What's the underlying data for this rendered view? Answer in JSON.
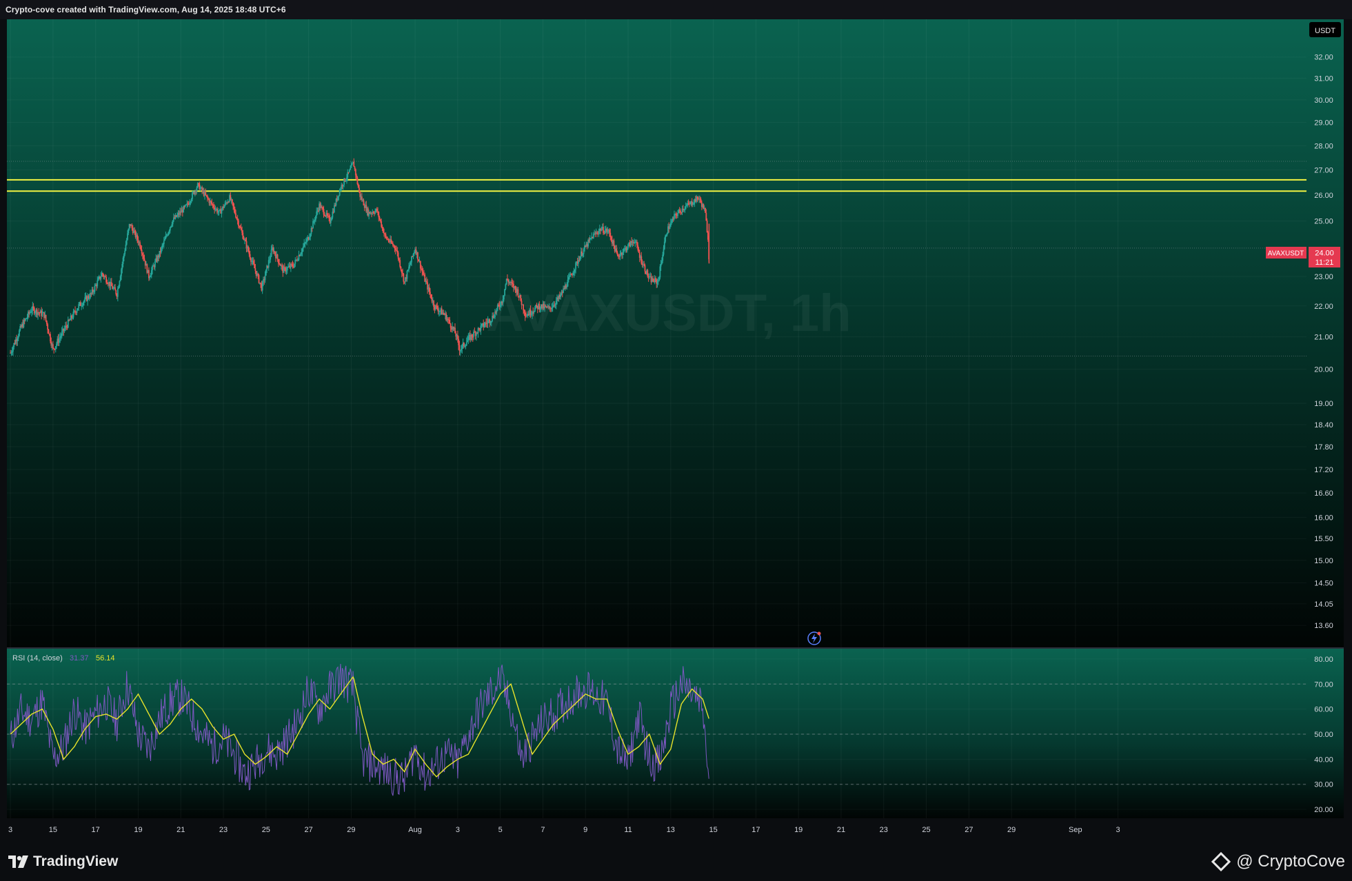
{
  "header": {
    "caption": "Crypto-cove created with TradingView.com, Aug 14, 2025 18:48 UTC+6"
  },
  "footer": {
    "tv_brand": "TradingView",
    "cc_brand": "@ CryptoCove"
  },
  "colors": {
    "up": "#26a69a",
    "down": "#ef5350",
    "hline": "#f4f442",
    "rsi": "#7e57c2",
    "rsi_ma": "#e8e32a",
    "price_tag": "#e53950"
  },
  "chart_data": [
    {
      "type": "candlestick",
      "symbol_watermark": "AVAXUSDT, 1h",
      "currency": "USDT",
      "price_label": {
        "symbol": "AVAXUSDT",
        "price": "24.00",
        "countdown": "11:21"
      },
      "last_price": 24.0,
      "y_scale": "log",
      "ylim": [
        13.2,
        33.8
      ],
      "y_ticks": [
        "32.00",
        "31.00",
        "30.00",
        "29.00",
        "28.00",
        "27.00",
        "26.00",
        "25.00",
        "23.00",
        "22.00",
        "21.00",
        "20.00",
        "19.00",
        "18.40",
        "17.80",
        "17.20",
        "16.60",
        "16.00",
        "15.50",
        "15.00",
        "14.50",
        "14.05",
        "13.60"
      ],
      "x_range_days": [
        -0.1,
        62.5
      ],
      "x_ticks": [
        {
          "label": "3",
          "day": 0
        },
        {
          "label": "15",
          "day": 2
        },
        {
          "label": "17",
          "day": 4
        },
        {
          "label": "19",
          "day": 6
        },
        {
          "label": "21",
          "day": 8
        },
        {
          "label": "23",
          "day": 10
        },
        {
          "label": "25",
          "day": 12
        },
        {
          "label": "27",
          "day": 14
        },
        {
          "label": "29",
          "day": 16
        },
        {
          "label": "Aug",
          "day": 19
        },
        {
          "label": "3",
          "day": 21
        },
        {
          "label": "5",
          "day": 23
        },
        {
          "label": "7",
          "day": 25
        },
        {
          "label": "9",
          "day": 27
        },
        {
          "label": "11",
          "day": 29
        },
        {
          "label": "13",
          "day": 31
        },
        {
          "label": "15",
          "day": 33
        },
        {
          "label": "17",
          "day": 35
        },
        {
          "label": "19",
          "day": 37
        },
        {
          "label": "21",
          "day": 39
        },
        {
          "label": "23",
          "day": 41
        },
        {
          "label": "25",
          "day": 43
        },
        {
          "label": "27",
          "day": 45
        },
        {
          "label": "29",
          "day": 47
        },
        {
          "label": "Sep",
          "day": 50
        },
        {
          "label": "3",
          "day": 52
        }
      ],
      "horizontal_lines": [
        {
          "price": 26.6
        },
        {
          "price": 26.15
        }
      ],
      "dotted_lines": [
        {
          "price": 27.35
        },
        {
          "price": 24.0
        },
        {
          "price": 20.4
        }
      ],
      "price_path": [
        [
          0.0,
          20.5
        ],
        [
          0.5,
          21.3
        ],
        [
          1.0,
          21.9
        ],
        [
          1.6,
          21.7
        ],
        [
          2.0,
          20.6
        ],
        [
          2.5,
          21.2
        ],
        [
          3.2,
          22.0
        ],
        [
          3.8,
          22.4
        ],
        [
          4.3,
          23.1
        ],
        [
          5.0,
          22.4
        ],
        [
          5.6,
          24.9
        ],
        [
          6.1,
          24.1
        ],
        [
          6.5,
          23.0
        ],
        [
          7.0,
          23.8
        ],
        [
          7.6,
          25.0
        ],
        [
          8.3,
          25.6
        ],
        [
          8.8,
          26.4
        ],
        [
          9.3,
          25.8
        ],
        [
          9.8,
          25.3
        ],
        [
          10.3,
          25.9
        ],
        [
          10.8,
          24.7
        ],
        [
          11.3,
          23.6
        ],
        [
          11.8,
          22.6
        ],
        [
          12.3,
          24.0
        ],
        [
          12.8,
          23.2
        ],
        [
          13.3,
          23.4
        ],
        [
          14.0,
          24.4
        ],
        [
          14.5,
          25.6
        ],
        [
          15.0,
          25.0
        ],
        [
          15.5,
          26.3
        ],
        [
          15.9,
          26.9
        ],
        [
          16.1,
          27.3
        ],
        [
          16.4,
          26.0
        ],
        [
          16.8,
          25.3
        ],
        [
          17.2,
          25.4
        ],
        [
          17.6,
          24.4
        ],
        [
          18.1,
          24.0
        ],
        [
          18.5,
          22.8
        ],
        [
          19.0,
          24.0
        ],
        [
          19.4,
          23.0
        ],
        [
          19.9,
          22.0
        ],
        [
          20.4,
          21.7
        ],
        [
          20.9,
          21.1
        ],
        [
          21.1,
          20.6
        ],
        [
          21.6,
          21.0
        ],
        [
          22.1,
          21.3
        ],
        [
          22.6,
          21.6
        ],
        [
          23.1,
          22.2
        ],
        [
          23.3,
          22.9
        ],
        [
          23.8,
          22.5
        ],
        [
          24.2,
          21.7
        ],
        [
          24.8,
          22.0
        ],
        [
          25.3,
          21.9
        ],
        [
          25.8,
          22.3
        ],
        [
          26.3,
          23.0
        ],
        [
          26.8,
          23.8
        ],
        [
          27.3,
          24.4
        ],
        [
          27.7,
          24.7
        ],
        [
          28.1,
          24.6
        ],
        [
          28.5,
          23.7
        ],
        [
          28.9,
          24.0
        ],
        [
          29.3,
          24.3
        ],
        [
          29.6,
          23.6
        ],
        [
          30.0,
          22.9
        ],
        [
          30.4,
          22.8
        ],
        [
          30.8,
          24.6
        ],
        [
          31.2,
          25.2
        ],
        [
          31.6,
          25.5
        ],
        [
          32.0,
          25.7
        ],
        [
          32.3,
          25.9
        ],
        [
          32.6,
          25.4
        ],
        [
          32.75,
          24.4
        ],
        [
          32.8,
          23.5
        ]
      ],
      "data_points_summary": {
        "high": 27.3,
        "low": 20.5,
        "peaks": [
          [
            8.8,
            26.4
          ],
          [
            16.1,
            27.3
          ],
          [
            32.3,
            25.9
          ]
        ]
      }
    },
    {
      "type": "line",
      "title": "RSI (14, close)",
      "values_label": {
        "rsi": "31.37",
        "rsi_ma": "56.14"
      },
      "ylim": [
        17,
        83
      ],
      "y_ticks": [
        "80.00",
        "70.00",
        "60.00",
        "50.00",
        "40.00",
        "30.00",
        "20.00"
      ],
      "bands": [
        70,
        50,
        30
      ],
      "series": [
        {
          "values": [
            [
              0,
              48
            ],
            [
              0.5,
              59
            ],
            [
              1,
              56
            ],
            [
              1.5,
              63
            ],
            [
              2,
              40
            ],
            [
              2.5,
              45
            ],
            [
              3,
              60
            ],
            [
              3.5,
              52
            ],
            [
              4,
              58
            ],
            [
              4.5,
              63
            ],
            [
              5,
              55
            ],
            [
              5.5,
              70
            ],
            [
              6,
              50
            ],
            [
              6.5,
              44
            ],
            [
              7,
              56
            ],
            [
              7.5,
              63
            ],
            [
              8,
              65
            ],
            [
              8.5,
              58
            ],
            [
              9,
              50
            ],
            [
              9.5,
              45
            ],
            [
              10,
              48
            ],
            [
              10.5,
              42
            ],
            [
              11,
              34
            ],
            [
              11.5,
              38
            ],
            [
              12,
              44
            ],
            [
              12.5,
              42
            ],
            [
              13,
              48
            ],
            [
              13.5,
              55
            ],
            [
              14,
              68
            ],
            [
              14.5,
              60
            ],
            [
              15,
              68
            ],
            [
              15.5,
              73
            ],
            [
              16.1,
              68
            ],
            [
              16.5,
              40
            ],
            [
              17,
              38
            ],
            [
              17.5,
              36
            ],
            [
              18,
              33
            ],
            [
              18.5,
              32
            ],
            [
              19,
              44
            ],
            [
              19.5,
              33
            ],
            [
              20,
              38
            ],
            [
              20.5,
              42
            ],
            [
              21,
              38
            ],
            [
              21.5,
              50
            ],
            [
              22,
              60
            ],
            [
              22.5,
              66
            ],
            [
              23,
              72
            ],
            [
              23.5,
              60
            ],
            [
              24,
              40
            ],
            [
              24.5,
              48
            ],
            [
              25,
              55
            ],
            [
              25.5,
              58
            ],
            [
              26,
              62
            ],
            [
              26.5,
              66
            ],
            [
              27,
              68
            ],
            [
              27.5,
              66
            ],
            [
              28,
              62
            ],
            [
              28.5,
              44
            ],
            [
              29,
              38
            ],
            [
              29.5,
              58
            ],
            [
              30,
              40
            ],
            [
              30.5,
              38
            ],
            [
              31,
              60
            ],
            [
              31.5,
              70
            ],
            [
              32,
              66
            ],
            [
              32.5,
              60
            ],
            [
              32.8,
              31.4
            ]
          ]
        },
        {
          "values": [
            [
              0,
              50
            ],
            [
              1,
              58
            ],
            [
              1.5,
              60
            ],
            [
              2,
              52
            ],
            [
              2.5,
              40
            ],
            [
              3,
              45
            ],
            [
              3.5,
              52
            ],
            [
              4,
              57
            ],
            [
              4.5,
              58
            ],
            [
              5,
              56
            ],
            [
              5.5,
              60
            ],
            [
              6,
              66
            ],
            [
              6.5,
              58
            ],
            [
              7,
              50
            ],
            [
              7.5,
              54
            ],
            [
              8,
              60
            ],
            [
              8.5,
              64
            ],
            [
              9,
              60
            ],
            [
              9.5,
              53
            ],
            [
              10,
              48
            ],
            [
              10.5,
              50
            ],
            [
              11,
              42
            ],
            [
              11.5,
              38
            ],
            [
              12,
              41
            ],
            [
              12.5,
              45
            ],
            [
              13,
              42
            ],
            [
              13.5,
              50
            ],
            [
              14,
              58
            ],
            [
              14.5,
              64
            ],
            [
              15,
              60
            ],
            [
              15.5,
              66
            ],
            [
              16.1,
              73
            ],
            [
              16.5,
              58
            ],
            [
              17,
              42
            ],
            [
              17.5,
              38
            ],
            [
              18,
              40
            ],
            [
              18.5,
              35
            ],
            [
              19,
              44
            ],
            [
              19.5,
              38
            ],
            [
              20,
              33
            ],
            [
              20.5,
              37
            ],
            [
              21,
              40
            ],
            [
              21.5,
              42
            ],
            [
              22,
              50
            ],
            [
              22.5,
              58
            ],
            [
              23,
              66
            ],
            [
              23.5,
              70
            ],
            [
              24,
              56
            ],
            [
              24.5,
              42
            ],
            [
              25,
              48
            ],
            [
              25.5,
              54
            ],
            [
              26,
              58
            ],
            [
              26.5,
              62
            ],
            [
              27,
              66
            ],
            [
              27.5,
              64
            ],
            [
              28,
              64
            ],
            [
              28.5,
              52
            ],
            [
              29,
              42
            ],
            [
              29.5,
              45
            ],
            [
              30,
              50
            ],
            [
              30.5,
              38
            ],
            [
              31,
              44
            ],
            [
              31.5,
              62
            ],
            [
              32,
              68
            ],
            [
              32.5,
              64
            ],
            [
              32.8,
              56
            ]
          ]
        }
      ]
    }
  ]
}
